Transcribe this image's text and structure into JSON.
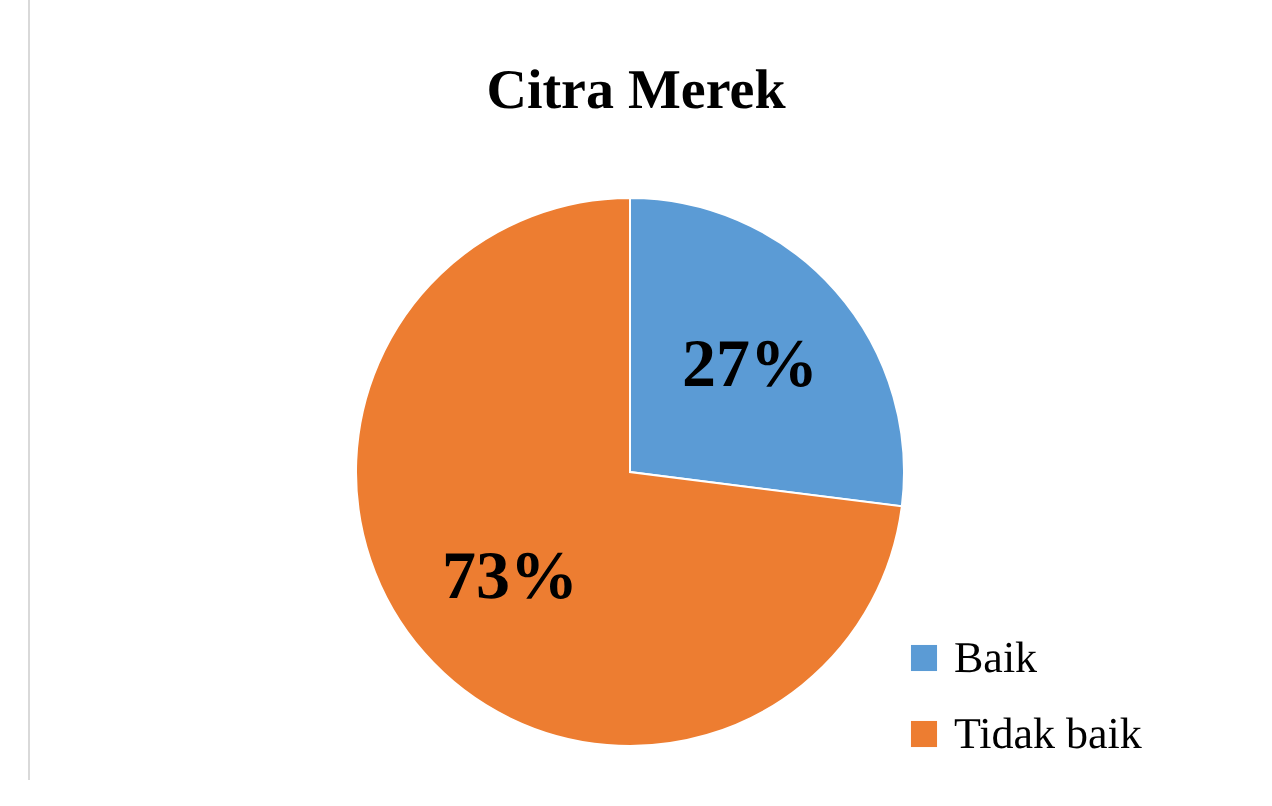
{
  "chart_data": {
    "type": "pie",
    "title": "Citra Merek",
    "categories": [
      "Baik",
      "Tidak baik"
    ],
    "values": [
      27,
      73
    ],
    "colors": [
      "#5b9bd5",
      "#ed7d31"
    ],
    "value_labels": [
      "27%",
      "73%"
    ],
    "legend": "bottom right"
  }
}
